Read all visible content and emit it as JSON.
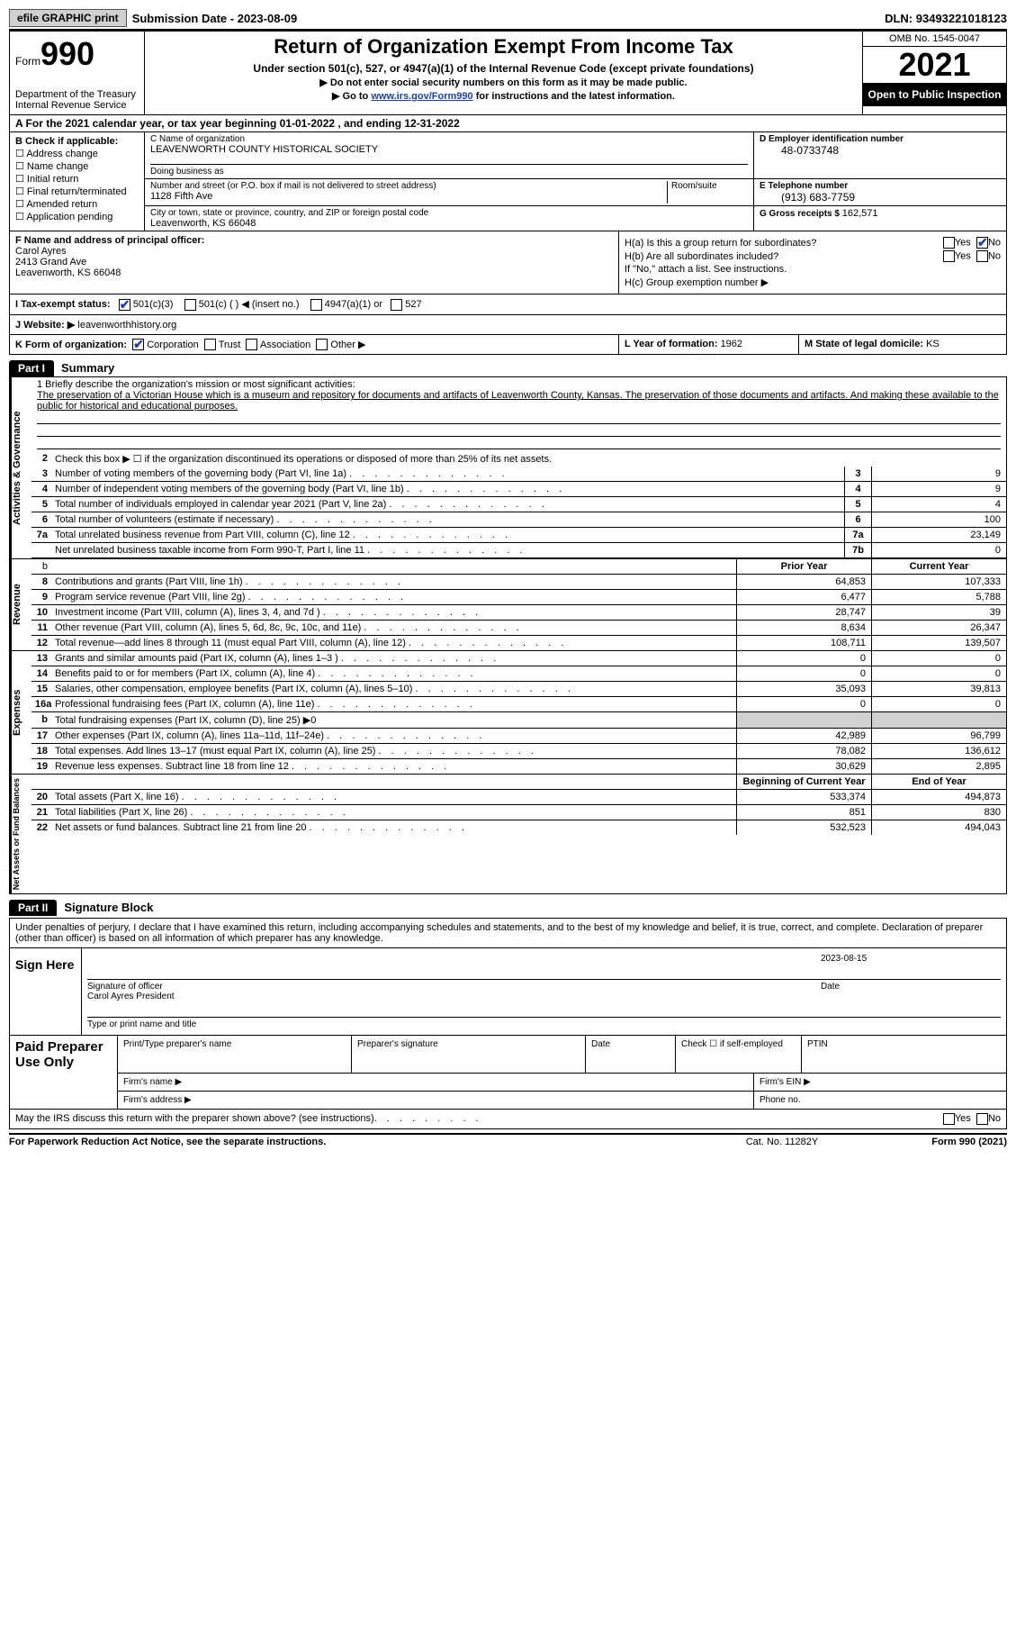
{
  "topbar": {
    "btn1": "efile GRAPHIC print",
    "sub_label": "Submission Date - ",
    "sub_date": "2023-08-09",
    "dln_label": "DLN: ",
    "dln": "93493221018123"
  },
  "header": {
    "formword": "Form",
    "formnum": "990",
    "dept": "Department of the Treasury\nInternal Revenue Service",
    "title": "Return of Organization Exempt From Income Tax",
    "sub1": "Under section 501(c), 527, or 4947(a)(1) of the Internal Revenue Code (except private foundations)",
    "sub2": "▶ Do not enter social security numbers on this form as it may be made public.",
    "sub3_pre": "▶ Go to ",
    "sub3_link": "www.irs.gov/Form990",
    "sub3_post": " for instructions and the latest information.",
    "omb": "OMB No. 1545-0047",
    "year": "2021",
    "open": "Open to Public Inspection"
  },
  "lineA": "A For the 2021 calendar year, or tax year beginning 01-01-2022   , and ending 12-31-2022",
  "colB": {
    "label": "B Check if applicable:",
    "opts": [
      "Address change",
      "Name change",
      "Initial return",
      "Final return/terminated",
      "Amended return",
      "Application pending"
    ]
  },
  "colC": {
    "name_label": "C Name of organization",
    "name": "LEAVENWORTH COUNTY HISTORICAL SOCIETY",
    "dba_label": "Doing business as",
    "street_label": "Number and street (or P.O. box if mail is not delivered to street address)",
    "room_label": "Room/suite",
    "street": "1128 Fifth Ave",
    "city_label": "City or town, state or province, country, and ZIP or foreign postal code",
    "city": "Leavenworth, KS  66048"
  },
  "colD": {
    "ein_label": "D Employer identification number",
    "ein": "48-0733748",
    "tel_label": "E Telephone number",
    "tel": "(913) 683-7759",
    "gross_label": "G Gross receipts $ ",
    "gross": "162,571"
  },
  "cellF": {
    "label": "F  Name and address of principal officer:",
    "name": "Carol Ayres",
    "addr1": "2413 Grand Ave",
    "addr2": "Leavenworth, KS  66048"
  },
  "cellH": {
    "ha": "H(a)  Is this a group return for subordinates?",
    "hb": "H(b)  Are all subordinates included?",
    "hbno": "If \"No,\" attach a list. See instructions.",
    "hc": "H(c)  Group exemption number ▶",
    "yes": "Yes",
    "no": "No"
  },
  "rowI": {
    "label": "I    Tax-exempt status:",
    "o1": "501(c)(3)",
    "o2": "501(c) (  ) ◀ (insert no.)",
    "o3": "4947(a)(1) or",
    "o4": "527"
  },
  "rowJ": {
    "label": "J   Website: ▶ ",
    "val": "leavenworthhistory.org"
  },
  "rowK": {
    "label": "K Form of organization:",
    "o1": "Corporation",
    "o2": "Trust",
    "o3": "Association",
    "o4": "Other ▶",
    "l_label": "L Year of formation: ",
    "l_val": "1962",
    "m_label": "M State of legal domicile: ",
    "m_val": "KS"
  },
  "part1": {
    "bar": "Part I",
    "title": "Summary"
  },
  "side": {
    "s1": "Activities & Governance",
    "s2": "Revenue",
    "s3": "Expenses",
    "s4": "Net Assets or Fund Balances"
  },
  "mission": {
    "label": "1   Briefly describe the organization's mission or most significant activities:",
    "text": "The preservation of a Victorian House which is a museum and repository for documents and artifacts of Leavenworth County, Kansas. The preservation of those documents and artifacts. And making these available to the public for historical and educational purposes."
  },
  "r2": {
    "ln": "2",
    "desc": "Check this box ▶ ☐ if the organization discontinued its operations or disposed of more than 25% of its net assets."
  },
  "gov_rows": [
    {
      "ln": "3",
      "desc": "Number of voting members of the governing body (Part VI, line 1a)",
      "box": "3",
      "val": "9"
    },
    {
      "ln": "4",
      "desc": "Number of independent voting members of the governing body (Part VI, line 1b)",
      "box": "4",
      "val": "9"
    },
    {
      "ln": "5",
      "desc": "Total number of individuals employed in calendar year 2021 (Part V, line 2a)",
      "box": "5",
      "val": "4"
    },
    {
      "ln": "6",
      "desc": "Total number of volunteers (estimate if necessary)",
      "box": "6",
      "val": "100"
    },
    {
      "ln": "7a",
      "desc": "Total unrelated business revenue from Part VIII, column (C), line 12",
      "box": "7a",
      "val": "23,149"
    },
    {
      "ln": "",
      "desc": "Net unrelated business taxable income from Form 990-T, Part I, line 11",
      "box": "7b",
      "val": "0"
    }
  ],
  "colhdr": {
    "prior": "Prior Year",
    "current": "Current Year"
  },
  "rev_rows": [
    {
      "ln": "8",
      "desc": "Contributions and grants (Part VIII, line 1h)",
      "p": "64,853",
      "c": "107,333"
    },
    {
      "ln": "9",
      "desc": "Program service revenue (Part VIII, line 2g)",
      "p": "6,477",
      "c": "5,788"
    },
    {
      "ln": "10",
      "desc": "Investment income (Part VIII, column (A), lines 3, 4, and 7d )",
      "p": "28,747",
      "c": "39"
    },
    {
      "ln": "11",
      "desc": "Other revenue (Part VIII, column (A), lines 5, 6d, 8c, 9c, 10c, and 11e)",
      "p": "8,634",
      "c": "26,347"
    },
    {
      "ln": "12",
      "desc": "Total revenue—add lines 8 through 11 (must equal Part VIII, column (A), line 12)",
      "p": "108,711",
      "c": "139,507"
    }
  ],
  "exp_rows": [
    {
      "ln": "13",
      "desc": "Grants and similar amounts paid (Part IX, column (A), lines 1–3 )",
      "p": "0",
      "c": "0"
    },
    {
      "ln": "14",
      "desc": "Benefits paid to or for members (Part IX, column (A), line 4)",
      "p": "0",
      "c": "0"
    },
    {
      "ln": "15",
      "desc": "Salaries, other compensation, employee benefits (Part IX, column (A), lines 5–10)",
      "p": "35,093",
      "c": "39,813"
    },
    {
      "ln": "16a",
      "desc": "Professional fundraising fees (Part IX, column (A), line 11e)",
      "p": "0",
      "c": "0"
    },
    {
      "ln": "b",
      "desc": "Total fundraising expenses (Part IX, column (D), line 25) ▶0",
      "p": "",
      "c": "",
      "shade": true
    },
    {
      "ln": "17",
      "desc": "Other expenses (Part IX, column (A), lines 11a–11d, 11f–24e)",
      "p": "42,989",
      "c": "96,799"
    },
    {
      "ln": "18",
      "desc": "Total expenses. Add lines 13–17 (must equal Part IX, column (A), line 25)",
      "p": "78,082",
      "c": "136,612"
    },
    {
      "ln": "19",
      "desc": "Revenue less expenses. Subtract line 18 from line 12",
      "p": "30,629",
      "c": "2,895"
    }
  ],
  "colhdr2": {
    "beg": "Beginning of Current Year",
    "end": "End of Year"
  },
  "net_rows": [
    {
      "ln": "20",
      "desc": "Total assets (Part X, line 16)",
      "p": "533,374",
      "c": "494,873"
    },
    {
      "ln": "21",
      "desc": "Total liabilities (Part X, line 26)",
      "p": "851",
      "c": "830"
    },
    {
      "ln": "22",
      "desc": "Net assets or fund balances. Subtract line 21 from line 20",
      "p": "532,523",
      "c": "494,043"
    }
  ],
  "part2": {
    "bar": "Part II",
    "title": "Signature Block"
  },
  "sigtext": "Under penalties of perjury, I declare that I have examined this return, including accompanying schedules and statements, and to the best of my knowledge and belief, it is true, correct, and complete. Declaration of preparer (other than officer) is based on all information of which preparer has any knowledge.",
  "sign": {
    "here": "Sign Here",
    "date": "2023-08-15",
    "sig_label": "Signature of officer",
    "date_label": "Date",
    "name": "Carol Ayres  President",
    "name_label": "Type or print name and title"
  },
  "prep": {
    "title": "Paid Preparer Use Only",
    "c1": "Print/Type preparer's name",
    "c2": "Preparer's signature",
    "c3": "Date",
    "c4": "Check ☐ if self-employed",
    "c5": "PTIN",
    "firm": "Firm's name  ▶",
    "ein": "Firm's EIN ▶",
    "addr": "Firm's address ▶",
    "phone": "Phone no."
  },
  "discuss": {
    "text": "May the IRS discuss this return with the preparer shown above? (see instructions)",
    "yes": "Yes",
    "no": "No"
  },
  "footer": {
    "f1": "For Paperwork Reduction Act Notice, see the separate instructions.",
    "f2": "Cat. No. 11282Y",
    "f3": "Form 990 (2021)"
  }
}
